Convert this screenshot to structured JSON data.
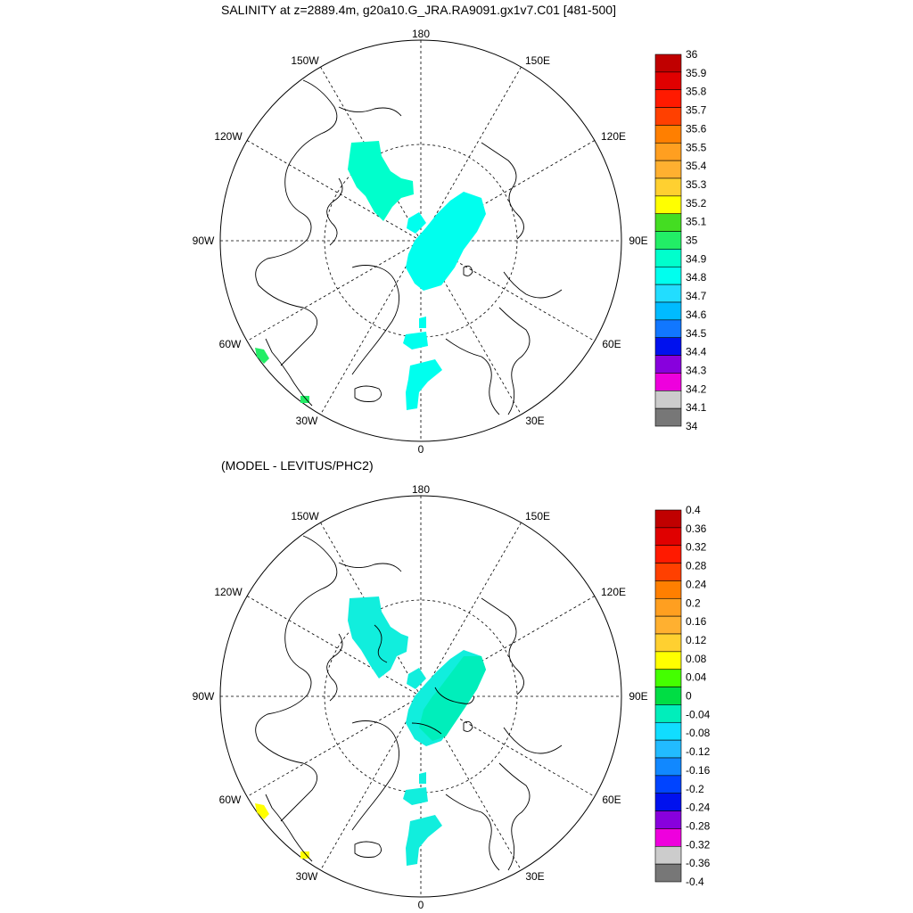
{
  "panels": [
    {
      "title": "SALINITY at z=2889.4m, g20a10.G_JRA.RA9091.gx1v7.C01 [481-500]",
      "colorbar": {
        "labels": [
          "36",
          "35.9",
          "35.8",
          "35.7",
          "35.6",
          "35.5",
          "35.4",
          "35.3",
          "35.2",
          "35.1",
          "35",
          "34.9",
          "34.8",
          "34.7",
          "34.6",
          "34.5",
          "34.4",
          "34.3",
          "34.2",
          "34.1",
          "34"
        ],
        "colors": [
          "#c00000",
          "#e00000",
          "#ff1a00",
          "#ff4000",
          "#ff7f00",
          "#ff9f20",
          "#ffb030",
          "#ffd030",
          "#ffff00",
          "#44dd22",
          "#22ee66",
          "#00ffcc",
          "#00ffee",
          "#22ddff",
          "#00bbff",
          "#1177ff",
          "#0011ee",
          "#8800dd",
          "#ee00dd",
          "#cccccc",
          "#777777"
        ]
      }
    },
    {
      "title": "(MODEL - LEVITUS/PHC2)",
      "colorbar": {
        "labels": [
          "0.4",
          "0.36",
          "0.32",
          "0.28",
          "0.24",
          "0.2",
          "0.16",
          "0.12",
          "0.08",
          "0.04",
          "0",
          "-0.04",
          "-0.08",
          "-0.12",
          "-0.16",
          "-0.2",
          "-0.24",
          "-0.28",
          "-0.32",
          "-0.36",
          "-0.4"
        ],
        "colors": [
          "#c00000",
          "#e00000",
          "#ff1a00",
          "#ff4000",
          "#ff7f00",
          "#ff9f20",
          "#ffb030",
          "#ffd030",
          "#ffff00",
          "#44ff00",
          "#00dd44",
          "#00eebb",
          "#11ddff",
          "#22bbff",
          "#1188ff",
          "#0044ff",
          "#0011ee",
          "#8800dd",
          "#ee00dd",
          "#cccccc",
          "#777777"
        ]
      }
    }
  ],
  "longitude_labels": {
    "lon_180": "180",
    "lon_150w": "150W",
    "lon_150e": "150E",
    "lon_120w": "120W",
    "lon_120e": "120E",
    "lon_90w": "90W",
    "lon_90e": "90E",
    "lon_60w": "60W",
    "lon_60e": "60E",
    "lon_30w": "30W",
    "lon_30e": "30E",
    "lon_0": "0"
  },
  "fill_colors": {
    "salinity_blob": "#00ffcc",
    "salinity_green": "#22ee66",
    "diff_blob": "#11eedd",
    "diff_green": "#00eebb",
    "diff_yellow": "#ffff00"
  }
}
